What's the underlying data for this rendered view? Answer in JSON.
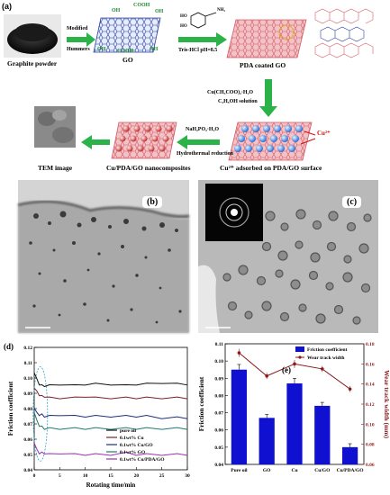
{
  "schematic": {
    "panel_letter": "(a)",
    "graphite_label": "Graphite powder",
    "go_label": "GO",
    "pda_go_label": "PDA coated GO",
    "cu_ads_label": "Cu²⁺ adsorbed on PDA/GO surface",
    "composite_label": "Cu/PDA/GO nanocomposites",
    "tem_label": "TEM image",
    "arrow1_top": "Modified",
    "arrow1_bottom": "Hummers",
    "arrow2_label": "Tris-HCl pH=8.5",
    "arrow3_line1": "Cu(CH₃COO)₂·H₂O",
    "arrow3_line2": "C₂H₅OH solution",
    "arrow4_line1": "NaH₂PO₂·H₂O",
    "arrow4_line2": "Hydrothermal reduction",
    "cu_ion": "Cu²⁺",
    "go_groups": [
      "OH",
      "COOH",
      "OH",
      "OH",
      "COOH",
      "OH"
    ],
    "dopamine_groups": [
      "HO",
      "HO",
      "NH₂"
    ]
  },
  "tem": {
    "panel_b": "(b)",
    "panel_c": "(c)"
  },
  "chart_data": [
    {
      "panel": "(d)",
      "type": "line",
      "xlabel": "Rotating time/min",
      "ylabel": "Friction coefficient",
      "xlim": [
        0,
        30
      ],
      "ylim": [
        0.04,
        0.12
      ],
      "xticks": [
        "0",
        "5",
        "10",
        "15",
        "20",
        "25",
        "30"
      ],
      "yticks": [
        "0.04",
        "0.05",
        "0.06",
        "0.07",
        "0.08",
        "0.09",
        "0.10",
        "0.11",
        "0.12"
      ],
      "legend_position": "bottom-right",
      "series": [
        {
          "name": "pure oil",
          "color": "#111111",
          "x": [
            0,
            0.5,
            1,
            1.5,
            2,
            3,
            5,
            8,
            10,
            12,
            15,
            18,
            20,
            22,
            25,
            28,
            30
          ],
          "y": [
            0.104,
            0.099,
            0.096,
            0.095,
            0.095,
            0.095,
            0.096,
            0.095,
            0.096,
            0.096,
            0.096,
            0.095,
            0.096,
            0.096,
            0.097,
            0.096,
            0.096
          ]
        },
        {
          "name": "0.1wt% Cu",
          "color": "#7a1f2b",
          "x": [
            0,
            0.5,
            1,
            1.5,
            2,
            3,
            5,
            8,
            10,
            12,
            15,
            18,
            20,
            22,
            25,
            28,
            30
          ],
          "y": [
            0.094,
            0.091,
            0.089,
            0.088,
            0.088,
            0.087,
            0.087,
            0.087,
            0.088,
            0.087,
            0.087,
            0.087,
            0.087,
            0.087,
            0.087,
            0.087,
            0.087
          ]
        },
        {
          "name": "0.1wt% Cu/GO",
          "color": "#1f2e7a",
          "x": [
            0,
            0.5,
            1,
            1.5,
            2,
            3,
            5,
            8,
            10,
            12,
            15,
            18,
            20,
            22,
            25,
            28,
            30
          ],
          "y": [
            0.081,
            0.077,
            0.076,
            0.076,
            0.075,
            0.075,
            0.076,
            0.075,
            0.075,
            0.075,
            0.075,
            0.075,
            0.075,
            0.075,
            0.074,
            0.074,
            0.074
          ]
        },
        {
          "name": "0.1wt% GO",
          "color": "#1f7a6a",
          "x": [
            0,
            0.5,
            1,
            1.5,
            2,
            3,
            5,
            8,
            10,
            12,
            15,
            18,
            20,
            22,
            25,
            28,
            30
          ],
          "y": [
            0.078,
            0.072,
            0.069,
            0.068,
            0.067,
            0.067,
            0.067,
            0.067,
            0.067,
            0.067,
            0.067,
            0.067,
            0.067,
            0.067,
            0.067,
            0.067,
            0.067
          ]
        },
        {
          "name": "0.1wt% Cu/PDA/GO",
          "color": "#9a2fb8",
          "x": [
            0,
            0.5,
            1,
            1.5,
            2,
            3,
            5,
            8,
            10,
            12,
            15,
            18,
            20,
            22,
            25,
            28,
            30
          ],
          "y": [
            0.058,
            0.053,
            0.051,
            0.051,
            0.051,
            0.05,
            0.051,
            0.05,
            0.05,
            0.05,
            0.05,
            0.051,
            0.05,
            0.05,
            0.05,
            0.05,
            0.05
          ]
        }
      ]
    },
    {
      "panel": "(e)",
      "type": "bar",
      "categories": [
        "Pure oil",
        "GO",
        "Cu",
        "Cu/GO",
        "Cu/PDA/GO"
      ],
      "ylabel": "Friction coefficient",
      "y2label": "Wear track width (mm)",
      "ylim": [
        0.04,
        0.11
      ],
      "y2lim": [
        0.06,
        0.18
      ],
      "yticks": [
        "0.04",
        "0.05",
        "0.06",
        "0.07",
        "0.08",
        "0.09",
        "0.10",
        "0.11"
      ],
      "y2ticks": [
        "0.06",
        "0.08",
        "0.10",
        "0.12",
        "0.14",
        "0.16",
        "0.18"
      ],
      "legend_position": "top-right",
      "series": [
        {
          "name": "Friction coefficient",
          "color": "#1010d0",
          "values": [
            0.095,
            0.067,
            0.087,
            0.074,
            0.05
          ],
          "errors": [
            0.003,
            0.002,
            0.003,
            0.002,
            0.002
          ]
        },
        {
          "name": "Wear track width",
          "color": "#8b1a1a",
          "values": [
            0.171,
            0.148,
            0.16,
            0.155,
            0.135
          ],
          "errors": [
            0.004,
            0.003,
            0.004,
            0.003,
            0.003
          ]
        }
      ]
    }
  ]
}
